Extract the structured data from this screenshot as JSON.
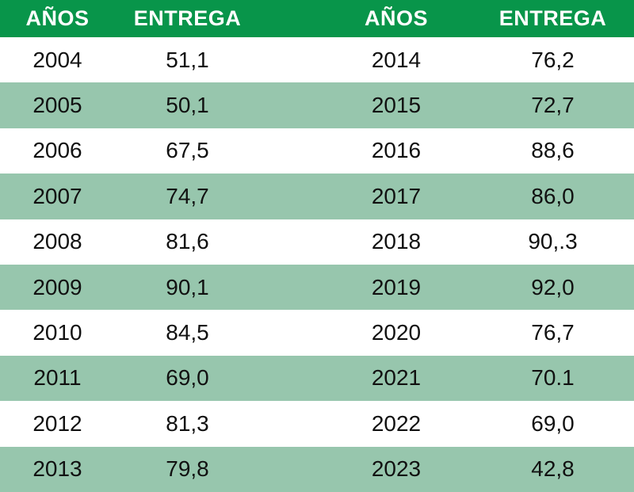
{
  "headers": {
    "left_year": "AÑOS",
    "left_value": "ENTREGA",
    "right_year": "AÑOS",
    "right_value": "ENTREGA"
  },
  "rows": [
    {
      "left_year": "2004",
      "left_value": "51,1",
      "right_year": "2014",
      "right_value": "76,2"
    },
    {
      "left_year": "2005",
      "left_value": "50,1",
      "right_year": "2015",
      "right_value": "72,7"
    },
    {
      "left_year": "2006",
      "left_value": "67,5",
      "right_year": "2016",
      "right_value": "88,6"
    },
    {
      "left_year": "2007",
      "left_value": "74,7",
      "right_year": "2017",
      "right_value": "86,0"
    },
    {
      "left_year": "2008",
      "left_value": "81,6",
      "right_year": "2018",
      "right_value": "90,.3"
    },
    {
      "left_year": "2009",
      "left_value": "90,1",
      "right_year": "2019",
      "right_value": "92,0"
    },
    {
      "left_year": "2010",
      "left_value": "84,5",
      "right_year": "2020",
      "right_value": "76,7"
    },
    {
      "left_year": "2011",
      "left_value": "69,0",
      "right_year": "2021",
      "right_value": "70.1"
    },
    {
      "left_year": "2012",
      "left_value": "81,3",
      "right_year": "2022",
      "right_value": "69,0"
    },
    {
      "left_year": "2013",
      "left_value": "79,8",
      "right_year": "2023",
      "right_value": "42,8"
    }
  ],
  "colors": {
    "header_background": "#08954a",
    "header_text": "#ffffff",
    "stripe_background": "#97c6ad",
    "plain_background": "#ffffff"
  }
}
